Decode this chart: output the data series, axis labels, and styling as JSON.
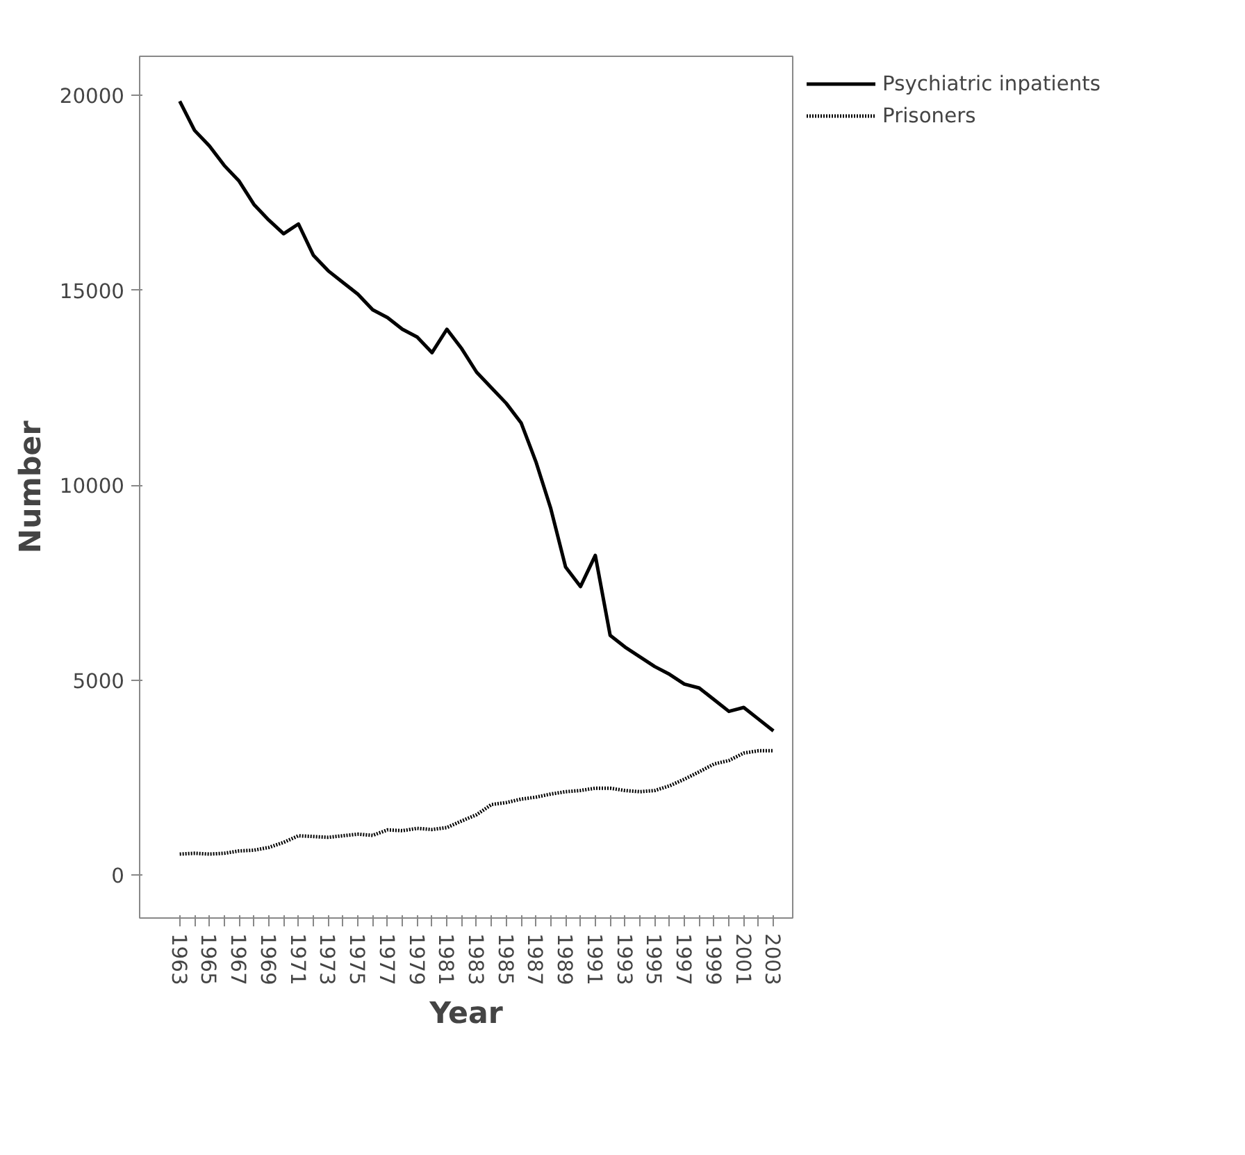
{
  "chart_data": {
    "type": "line",
    "xlabel": "Year",
    "ylabel": "Number",
    "x": [
      1963,
      1964,
      1965,
      1966,
      1967,
      1968,
      1969,
      1970,
      1971,
      1972,
      1973,
      1974,
      1975,
      1976,
      1977,
      1978,
      1979,
      1980,
      1981,
      1982,
      1983,
      1984,
      1985,
      1986,
      1987,
      1988,
      1989,
      1990,
      1991,
      1992,
      1993,
      1994,
      1995,
      1996,
      1997,
      1998,
      1999,
      2000,
      2001,
      2002,
      2003
    ],
    "series": [
      {
        "name": "Psychiatric inpatients",
        "color": "#000000",
        "line_style": "solid",
        "values": [
          19850,
          19100,
          18700,
          18200,
          17800,
          17200,
          16800,
          16450,
          16700,
          15900,
          15500,
          15200,
          14900,
          14500,
          14300,
          14000,
          13800,
          13400,
          14000,
          13500,
          12900,
          12500,
          12100,
          11600,
          10600,
          9400,
          7900,
          7400,
          8200,
          6150,
          5850,
          5600,
          5350,
          5150,
          4900,
          4800,
          4500,
          4200,
          4300,
          4000,
          3700
        ]
      },
      {
        "name": "Prisoners",
        "color": "#000000",
        "line_style": "dotted",
        "values": [
          540,
          560,
          540,
          560,
          620,
          640,
          710,
          840,
          1010,
          990,
          970,
          1010,
          1050,
          1020,
          1160,
          1140,
          1200,
          1170,
          1220,
          1390,
          1550,
          1810,
          1860,
          1950,
          2000,
          2080,
          2140,
          2170,
          2230,
          2230,
          2170,
          2140,
          2170,
          2290,
          2460,
          2650,
          2850,
          2940,
          3130,
          3190,
          3190
        ]
      }
    ],
    "xlim": [
      1960.3,
      2004.3
    ],
    "ylim": [
      -1100,
      21000
    ],
    "xticks": [
      1963,
      {
        "value": 1964,
        "label": null
      },
      1965,
      {
        "value": 1966,
        "label": null
      },
      1967,
      {
        "value": 1968,
        "label": null
      },
      1969,
      {
        "value": 1970,
        "label": null
      },
      1971,
      {
        "value": 1972,
        "label": null
      },
      1973,
      {
        "value": 1974,
        "label": null
      },
      1975,
      {
        "value": 1976,
        "label": null
      },
      1977,
      {
        "value": 1978,
        "label": null
      },
      1979,
      {
        "value": 1980,
        "label": null
      },
      1981,
      {
        "value": 1982,
        "label": null
      },
      1983,
      {
        "value": 1984,
        "label": null
      },
      1985,
      {
        "value": 1986,
        "label": null
      },
      1987,
      {
        "value": 1988,
        "label": null
      },
      1989,
      {
        "value": 1990,
        "label": null
      },
      1991,
      {
        "value": 1992,
        "label": null
      },
      1993,
      {
        "value": 1994,
        "label": null
      },
      1995,
      {
        "value": 1996,
        "label": null
      },
      1997,
      {
        "value": 1998,
        "label": null
      },
      1999,
      {
        "value": 2000,
        "label": null
      },
      2001,
      {
        "value": 2002,
        "label": null
      },
      2003
    ],
    "yticks": [
      0,
      5000,
      10000,
      15000,
      20000
    ],
    "grid": false,
    "legend": "right"
  }
}
